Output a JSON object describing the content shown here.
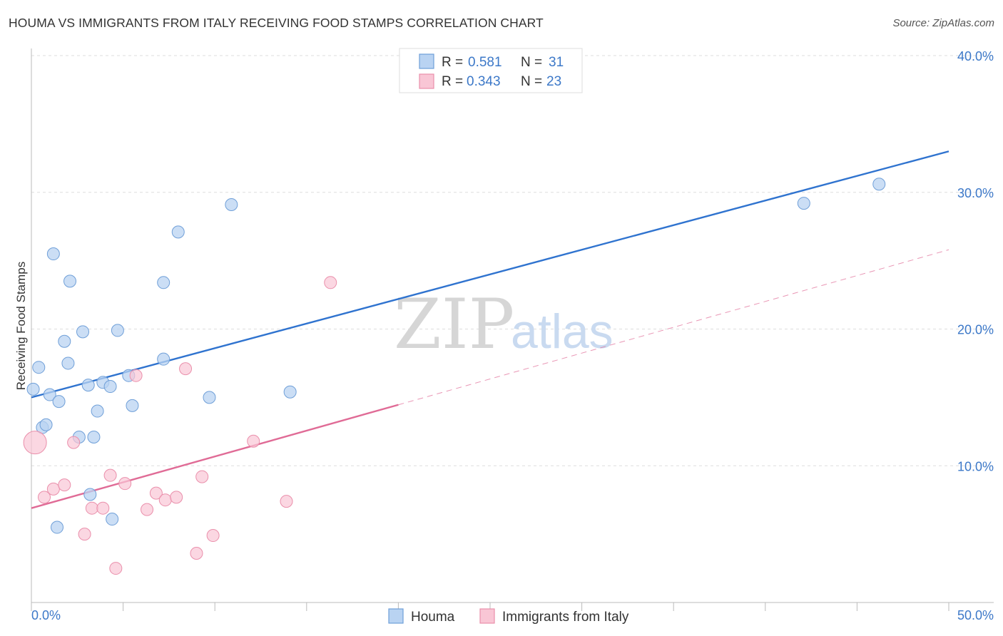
{
  "title": "HOUMA VS IMMIGRANTS FROM ITALY RECEIVING FOOD STAMPS CORRELATION CHART",
  "source": "Source: ZipAtlas.com",
  "watermark": {
    "zip": "ZIP",
    "atlas": "atlas"
  },
  "colors": {
    "houma_fill": "#b9d3f2",
    "houma_stroke": "#6f9fd8",
    "houma_line": "#2f73cf",
    "italy_fill": "#f9c6d5",
    "italy_stroke": "#ea8fab",
    "italy_line": "#e06b96",
    "grid": "#dddddd",
    "axis_text": "#3c78c8"
  },
  "legend": {
    "rows": [
      {
        "r_label": "R =",
        "r_value": "0.581",
        "n_label": "N =",
        "n_value": "31"
      },
      {
        "r_label": "R =",
        "r_value": "0.343",
        "n_label": "N =",
        "n_value": "23"
      }
    ]
  },
  "bottom_legend": {
    "houma": "Houma",
    "italy": "Immigrants from Italy"
  },
  "chart_data": {
    "type": "scatter",
    "title": "HOUMA VS IMMIGRANTS FROM ITALY RECEIVING FOOD STAMPS CORRELATION CHART",
    "xlabel": "",
    "ylabel": "Receiving Food Stamps",
    "xlim": [
      0,
      50
    ],
    "ylim": [
      0,
      40
    ],
    "x_tick_labels": [
      "0.0%",
      "50.0%"
    ],
    "y_ticks": [
      10,
      20,
      30,
      40
    ],
    "y_tick_labels": [
      "10.0%",
      "20.0%",
      "30.0%",
      "40.0%"
    ],
    "grid": true,
    "legend_position": "top-center",
    "series": [
      {
        "name": "Houma",
        "r": 0.581,
        "n": 31,
        "trend": {
          "x": [
            0,
            50
          ],
          "y": [
            15.0,
            33.0
          ],
          "dashed_from": null
        },
        "points": [
          [
            0.1,
            15.6
          ],
          [
            0.4,
            17.2
          ],
          [
            0.6,
            12.8
          ],
          [
            0.8,
            13.0
          ],
          [
            1.0,
            15.2
          ],
          [
            1.2,
            25.5
          ],
          [
            1.4,
            5.5
          ],
          [
            1.5,
            14.7
          ],
          [
            1.8,
            19.1
          ],
          [
            2.0,
            17.5
          ],
          [
            2.1,
            23.5
          ],
          [
            2.6,
            12.1
          ],
          [
            2.8,
            19.8
          ],
          [
            3.1,
            15.9
          ],
          [
            3.2,
            7.9
          ],
          [
            3.4,
            12.1
          ],
          [
            3.6,
            14.0
          ],
          [
            3.9,
            16.1
          ],
          [
            4.3,
            15.8
          ],
          [
            4.4,
            6.1
          ],
          [
            4.7,
            19.9
          ],
          [
            5.3,
            16.6
          ],
          [
            5.5,
            14.4
          ],
          [
            7.2,
            17.8
          ],
          [
            7.2,
            23.4
          ],
          [
            8.0,
            27.1
          ],
          [
            9.7,
            15.0
          ],
          [
            10.9,
            29.1
          ],
          [
            14.1,
            15.4
          ],
          [
            42.1,
            29.2
          ],
          [
            46.2,
            30.6
          ]
        ]
      },
      {
        "name": "Immigrants from Italy",
        "r": 0.343,
        "n": 23,
        "trend": {
          "x": [
            0,
            50
          ],
          "y": [
            6.9,
            25.8
          ],
          "solid_until_x": 20
        },
        "points": [
          [
            0.2,
            11.7
          ],
          [
            0.7,
            7.7
          ],
          [
            1.2,
            8.3
          ],
          [
            1.8,
            8.6
          ],
          [
            2.3,
            11.7
          ],
          [
            2.9,
            5.0
          ],
          [
            3.3,
            6.9
          ],
          [
            3.9,
            6.9
          ],
          [
            4.3,
            9.3
          ],
          [
            4.6,
            2.5
          ],
          [
            5.1,
            8.7
          ],
          [
            5.7,
            16.6
          ],
          [
            6.3,
            6.8
          ],
          [
            6.8,
            8.0
          ],
          [
            7.3,
            7.5
          ],
          [
            7.9,
            7.7
          ],
          [
            8.4,
            17.1
          ],
          [
            9.0,
            3.6
          ],
          [
            9.3,
            9.2
          ],
          [
            9.9,
            4.9
          ],
          [
            12.1,
            11.8
          ],
          [
            13.9,
            7.4
          ],
          [
            16.3,
            23.4
          ]
        ]
      }
    ]
  }
}
